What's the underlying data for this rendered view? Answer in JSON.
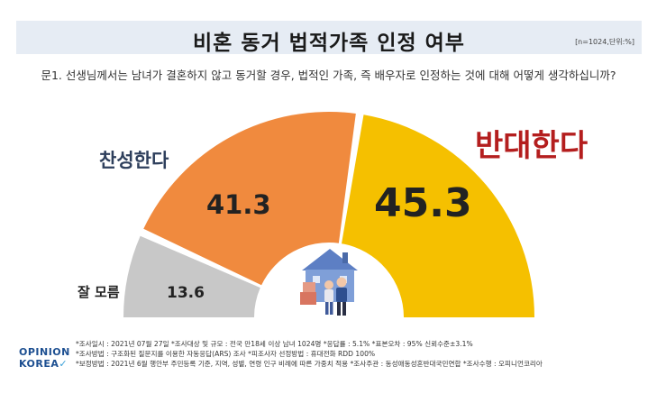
{
  "header": {
    "title": "비혼 동거 법적가족 인정 여부",
    "unit_note": "[n=1024,단위:%]"
  },
  "question": "문1. 선생님께서는 남녀가 결혼하지 않고 동거할 경우, 법적인 가족, 즉 배우자로 인정하는 것에 대해 어떻게 생각하십니까?",
  "chart_data": {
    "type": "pie",
    "variant": "semicircle-donut",
    "categories": [
      "잘 모름",
      "찬성한다",
      "반대한다"
    ],
    "values": [
      13.6,
      41.3,
      45.3
    ],
    "value_labels": [
      "13.6",
      "41.3",
      "45.3"
    ],
    "colors": [
      "#c8c8c8",
      "#f08a3e",
      "#f5c000"
    ]
  },
  "labels": {
    "agree": "찬성한다",
    "oppose": "반대한다",
    "unsure": "잘 모름"
  },
  "icons": {
    "center": "family-house-icon",
    "logo_check": "check-icon"
  },
  "footer": {
    "logo_line1": "OPINION",
    "logo_line2": "KOREA",
    "notes": [
      "*조사일시 : 2021년 07월 27일  *조사대상 및 규모 : 전국 만18세 이상 남녀 1024명 *응답률 : 5.1%   *표본오차 : 95% 신뢰수준±3.1%",
      "*조사방법 : 구조화된 질문지를 이용한 자동응답(ARS) 조사 *피조사자 선정방법 : 휴대전화 RDD 100%",
      "*보정방법 : 2021년 6월 행안부 주민등록 기준, 지역, 성별, 연령 인구 비례에 따른 가중치 적용  *조사주관 : 동성애동성혼반대국민연합  *조사수행 : 오피니언코리아"
    ]
  }
}
